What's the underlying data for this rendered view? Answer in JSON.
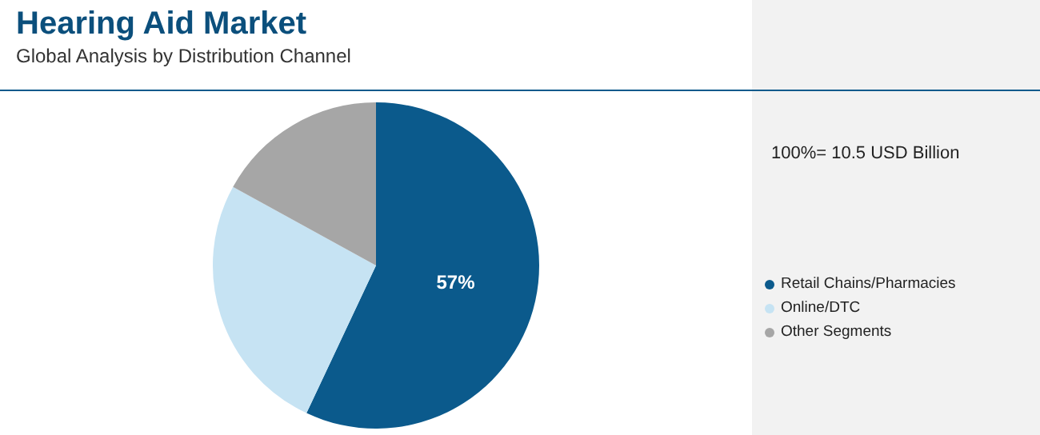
{
  "chart_data": {
    "type": "pie",
    "title": "Hearing Aid Market",
    "subtitle": "Global Analysis by Distribution Channel",
    "categories": [
      "Retail Chains/Pharmacies",
      "Online/DTC",
      "Other Segments"
    ],
    "values": [
      57,
      26,
      17
    ],
    "colors": [
      "#0b5a8c",
      "#c6e3f3",
      "#a6a6a6"
    ],
    "value_labels": [
      "57%",
      null,
      null
    ],
    "annotations": [
      "100%= 10.5 USD Billion"
    ],
    "legend": "right"
  }
}
